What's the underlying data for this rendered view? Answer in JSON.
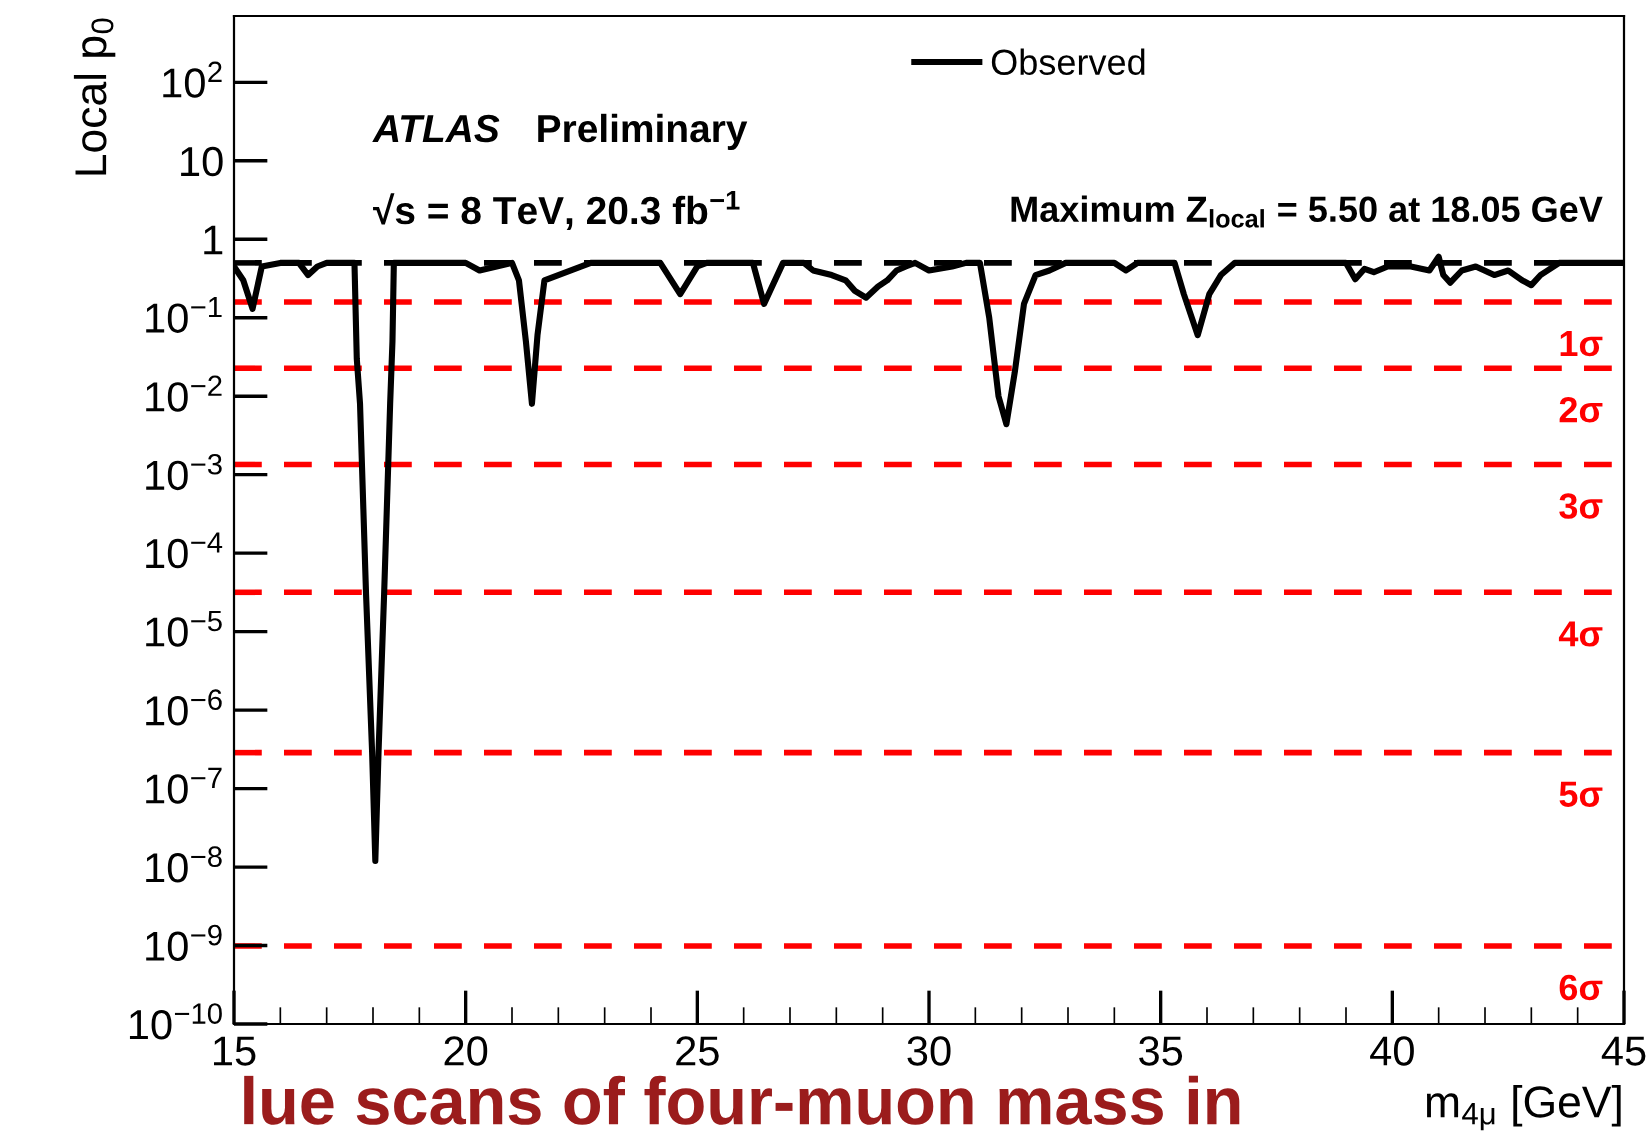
{
  "chart_data": {
    "type": "line",
    "xlabel": "m$_{4μ}$ [GeV]",
    "ylabel": "Local p$_{0}$",
    "log": "y",
    "grid": false,
    "legend": "top right",
    "marker": "none",
    "line_style": "solid",
    "xlim": [
      15,
      45
    ],
    "xticks": [
      15,
      20,
      25,
      30,
      35,
      40,
      45
    ],
    "ylim": [
      1e-10,
      700
    ],
    "yticks": [
      {
        "value": 1e-10,
        "label": "10$^{−10}$"
      },
      {
        "value": 1e-09,
        "label": "10$^{−9}$"
      },
      {
        "value": 1e-08,
        "label": "10$^{−8}$"
      },
      {
        "value": 1e-07,
        "label": "10$^{−7}$"
      },
      {
        "value": 1e-06,
        "label": "10$^{−6}$"
      },
      {
        "value": 1e-05,
        "label": "10$^{−5}$"
      },
      {
        "value": 0.0001,
        "label": "10$^{−4}$"
      },
      {
        "value": 0.001,
        "label": "10$^{−3}$"
      },
      {
        "value": 0.01,
        "label": "10$^{−2}$"
      },
      {
        "value": 0.1,
        "label": "10$^{−1}$"
      },
      1,
      10,
      {
        "value": 100,
        "label": "10$^{2}$"
      }
    ],
    "series": [
      {
        "name": "Observed",
        "color": "#000000",
        "x": [
          15.0,
          15.2,
          15.4,
          15.6,
          16.0,
          16.4,
          16.6,
          16.8,
          17.0,
          17.6,
          17.65,
          17.72,
          17.85,
          17.98,
          18.05,
          18.12,
          18.24,
          18.37,
          18.42,
          18.45,
          20.0,
          20.3,
          21.0,
          21.15,
          21.3,
          21.43,
          21.55,
          21.7,
          22.0,
          22.5,
          22.7,
          24.2,
          24.63,
          25.0,
          25.2,
          26.2,
          26.44,
          26.85,
          27.3,
          27.5,
          27.9,
          28.2,
          28.4,
          28.64,
          28.9,
          29.1,
          29.3,
          29.5,
          29.7,
          30.0,
          30.5,
          30.8,
          31.1,
          31.3,
          31.5,
          31.67,
          31.85,
          32.05,
          32.3,
          32.6,
          32.95,
          34.0,
          34.25,
          34.5,
          35.3,
          35.5,
          35.8,
          36.05,
          36.3,
          36.6,
          39.0,
          39.2,
          39.4,
          39.6,
          39.9,
          40.4,
          40.8,
          41.0,
          41.1,
          41.25,
          41.5,
          41.8,
          42.2,
          42.5,
          42.8,
          43.0,
          43.2,
          43.35,
          43.6,
          45.0
        ],
        "values": [
          0.45,
          0.3,
          0.13,
          0.45,
          0.5,
          0.5,
          0.35,
          0.45,
          0.5,
          0.5,
          0.03,
          0.008,
          3e-05,
          3e-07,
          1.2e-08,
          3e-07,
          3e-05,
          0.008,
          0.05,
          0.5,
          0.5,
          0.4,
          0.5,
          0.3,
          0.05,
          0.008,
          0.06,
          0.3,
          0.35,
          0.45,
          0.5,
          0.5,
          0.2,
          0.45,
          0.5,
          0.5,
          0.15,
          0.5,
          0.5,
          0.4,
          0.35,
          0.3,
          0.22,
          0.18,
          0.25,
          0.3,
          0.4,
          0.45,
          0.5,
          0.4,
          0.45,
          0.5,
          0.5,
          0.1,
          0.01,
          0.0044,
          0.02,
          0.15,
          0.35,
          0.4,
          0.5,
          0.5,
          0.4,
          0.5,
          0.5,
          0.2,
          0.06,
          0.2,
          0.35,
          0.5,
          0.5,
          0.31,
          0.42,
          0.38,
          0.45,
          0.45,
          0.4,
          0.6,
          0.35,
          0.28,
          0.4,
          0.45,
          0.35,
          0.4,
          0.3,
          0.26,
          0.35,
          0.4,
          0.5,
          0.5
        ]
      }
    ],
    "ref_lines": [
      {
        "axis": "y",
        "value": 0.5,
        "color": "#000000",
        "line_style": "dashed"
      },
      {
        "axis": "y",
        "value": 0.1587,
        "label": "1σ",
        "color": "#ff0000",
        "line_style": "dashed"
      },
      {
        "axis": "y",
        "value": 0.02275,
        "label": "2σ",
        "color": "#ff0000",
        "line_style": "dashed"
      },
      {
        "axis": "y",
        "value": 0.00135,
        "label": "3σ",
        "color": "#ff0000",
        "line_style": "dashed"
      },
      {
        "axis": "y",
        "value": 3.17e-05,
        "label": "4σ",
        "color": "#ff0000",
        "line_style": "dashed"
      },
      {
        "axis": "y",
        "value": 2.87e-07,
        "label": "5σ",
        "color": "#ff0000",
        "line_style": "dashed"
      },
      {
        "axis": "y",
        "value": 9.87e-10,
        "label": "6σ",
        "color": "#ff0000",
        "line_style": "dashed"
      }
    ],
    "annotations": [
      "ATLAS",
      "Preliminary",
      "√s = 8 TeV, 20.3 fb$^{−1}$",
      "Maximum Z$_{local}$ = 5.50 at 18.05 GeV",
      "lue scans of four-muon mass in"
    ]
  }
}
